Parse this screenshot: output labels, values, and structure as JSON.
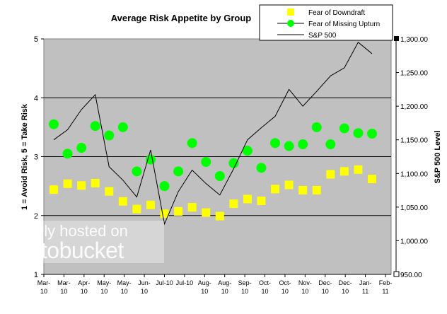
{
  "chart_data": {
    "type": "line",
    "title": "Average Risk Appetite by Group",
    "ylabel": "1 = Avoid Risk, 5 = Take Risk",
    "y2label": "S&P 500 Level",
    "x_axis_labels": [
      "Mar-10",
      "Mar-10",
      "Apr-10",
      "May-10",
      "May-10",
      "Jun-10",
      "Jul-10",
      "Jul-10",
      "Aug-10",
      "Aug-10",
      "Sep-10",
      "Oct-10",
      "Oct-10",
      "Nov-10",
      "Dec-10",
      "Dec-10",
      "Jan-11",
      "Feb-11"
    ],
    "ylim": [
      1,
      5
    ],
    "yticks": [
      1,
      2,
      3,
      4,
      5
    ],
    "y2lim": [
      950,
      1300
    ],
    "y2ticks": [
      {
        "value": 950,
        "label": "950.00"
      },
      {
        "value": 1000,
        "label": "1,000.00"
      },
      {
        "value": 1050,
        "label": "1,050.00"
      },
      {
        "value": 1100,
        "label": "1,100.00"
      },
      {
        "value": 1150,
        "label": "1,150.00"
      },
      {
        "value": 1200,
        "label": "1,200.00"
      },
      {
        "value": 1250,
        "label": "1,250.00"
      },
      {
        "value": 1300,
        "label": "1,300.00"
      }
    ],
    "grid": true,
    "series": [
      {
        "name": "Fear of Downdraft",
        "color": "#ffff00",
        "marker": "square",
        "values": [
          2.44,
          2.54,
          2.51,
          2.55,
          2.41,
          2.24,
          2.11,
          2.18,
          2.03,
          2.07,
          2.14,
          2.05,
          1.99,
          2.2,
          2.28,
          2.25,
          2.45,
          2.52,
          2.43,
          2.43,
          2.7,
          2.75,
          2.78,
          2.62
        ]
      },
      {
        "name": "Fear of Missing Upturn",
        "color": "#00ff00",
        "marker": "circle",
        "values": [
          3.55,
          3.05,
          3.15,
          3.52,
          3.36,
          3.5,
          2.75,
          2.95,
          2.5,
          2.75,
          3.23,
          2.91,
          2.67,
          2.89,
          3.1,
          2.81,
          3.23,
          3.18,
          3.21,
          3.5,
          3.21,
          3.48,
          3.4,
          3.39
        ]
      },
      {
        "name": "S&P 500",
        "color": "#000000",
        "marker": "none",
        "axis": "y2",
        "values": [
          1150,
          1165,
          1195,
          1217,
          1110,
          1090,
          1065,
          1135,
          1025,
          1073,
          1105,
          1085,
          1068,
          1107,
          1150,
          1168,
          1185,
          1225,
          1200,
          1222,
          1245,
          1257,
          1295,
          1278
        ]
      }
    ],
    "watermark": [
      "proudly hosted on",
      "photobucket"
    ]
  }
}
